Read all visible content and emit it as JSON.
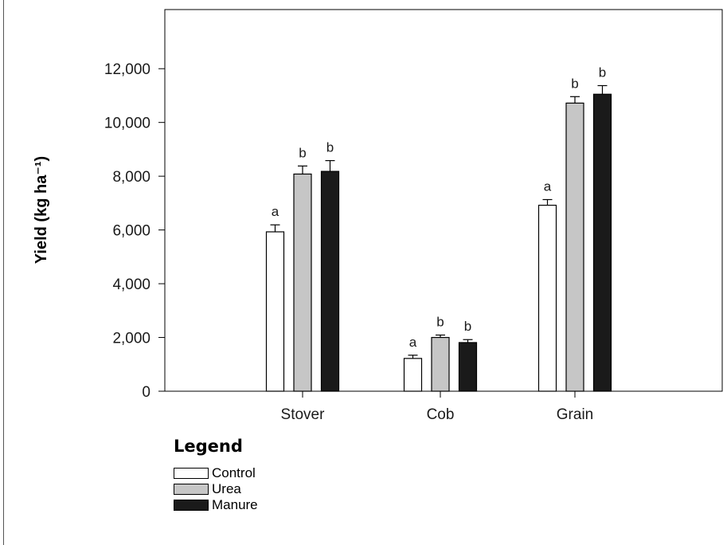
{
  "chart_data": {
    "type": "bar",
    "categories": [
      "Stover",
      "Cob",
      "Grain"
    ],
    "series": [
      {
        "name": "Control",
        "color": "#ffffff",
        "values": [
          5930,
          1220,
          6920
        ],
        "errors": [
          260,
          120,
          210
        ],
        "letters": [
          "a",
          "a",
          "a"
        ]
      },
      {
        "name": "Urea",
        "color": "#c6c6c6",
        "values": [
          8080,
          2000,
          10720
        ],
        "errors": [
          300,
          90,
          240
        ],
        "letters": [
          "b",
          "b",
          "b"
        ]
      },
      {
        "name": "Manure",
        "color": "#1a1a1a",
        "values": [
          8180,
          1810,
          11050
        ],
        "errors": [
          400,
          110,
          320
        ],
        "letters": [
          "b",
          "b",
          "b"
        ]
      }
    ],
    "ylabel": "Yield (kg ha⁻¹)",
    "ylim": [
      0,
      14200
    ],
    "yticks": [
      0,
      2000,
      4000,
      6000,
      8000,
      10000,
      12000
    ],
    "ytick_labels": [
      "0",
      "2,000",
      "4,000",
      "6,000",
      "8,000",
      "10,000",
      "12,000"
    ],
    "legend_title": "Legend",
    "legend_placement": "bottom-left"
  }
}
